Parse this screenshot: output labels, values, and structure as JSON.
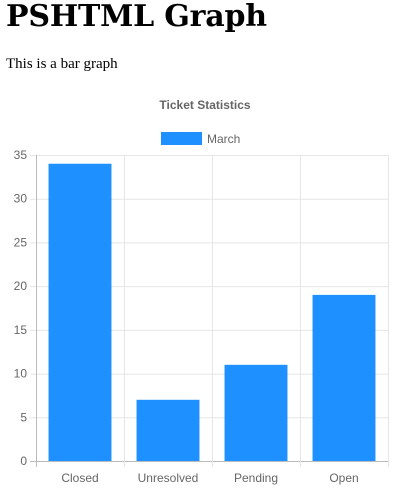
{
  "page": {
    "title": "PSHTML Graph",
    "subtitle": "This is a bar graph"
  },
  "chart_data": {
    "type": "bar",
    "title": "Ticket Statistics",
    "categories": [
      "Closed",
      "Unresolved",
      "Pending",
      "Open"
    ],
    "series": [
      {
        "name": "March",
        "values": [
          34,
          7,
          11,
          19
        ],
        "color": "#1e90ff"
      }
    ],
    "ylim": [
      0,
      35
    ],
    "yticks": [
      0,
      5,
      10,
      15,
      20,
      25,
      30,
      35
    ],
    "grid": true,
    "legend_position": "top"
  }
}
